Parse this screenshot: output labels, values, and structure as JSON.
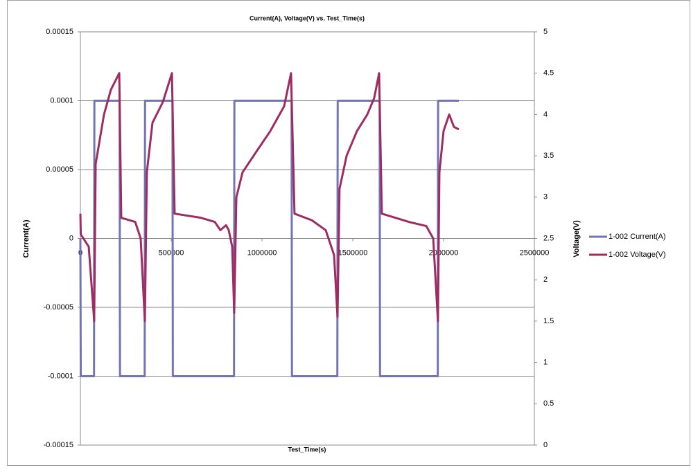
{
  "chart_data": {
    "type": "line",
    "title": "Current(A), Voltage(V) vs. Test_Time(s)",
    "x_label": "Test_Time(s)",
    "y_label": "Current(A)",
    "y2_label": "Voltage(V)",
    "xlim": [
      0,
      2500000
    ],
    "xticks": [
      0,
      500000,
      1000000,
      1500000,
      2000000,
      2500000
    ],
    "ylim": [
      -0.00015,
      0.00015
    ],
    "yticks": [
      -0.00015,
      -0.0001,
      -5e-05,
      0,
      5e-05,
      0.0001,
      0.00015
    ],
    "y2lim": [
      0,
      5
    ],
    "y2ticks": [
      0,
      0.5,
      1,
      1.5,
      2,
      2.5,
      3,
      3.5,
      4,
      4.5,
      5
    ],
    "grid": true,
    "legend": "right",
    "series": [
      {
        "name": "1-002 Current(A)",
        "color": "#7274b6",
        "x": [
          0,
          2000,
          75000,
          76000,
          77000,
          216000,
          217000,
          218000,
          354000,
          355000,
          356000,
          507000,
          508000,
          509000,
          846000,
          847000,
          848000,
          1163000,
          1164000,
          1165000,
          1415000,
          1416000,
          1417000,
          1648000,
          1649000,
          1650000,
          1968000,
          1969000,
          1970000,
          2084000
        ],
        "values": [
          0,
          -0.0001,
          -0.0001,
          0,
          0.0001,
          0.0001,
          0,
          -0.0001,
          -0.0001,
          0,
          0.0001,
          0.0001,
          0,
          -0.0001,
          -0.0001,
          0,
          0.0001,
          0.0001,
          0,
          -0.0001,
          -0.0001,
          0,
          0.0001,
          0.0001,
          0,
          -0.0001,
          -0.0001,
          0,
          0.0001,
          0.0001
        ]
      },
      {
        "name": "1-002 Voltage(V)",
        "color": "#9e2b62",
        "axis": "y2",
        "x": [
          0,
          2000,
          46000,
          76000,
          84000,
          130000,
          168000,
          214000,
          225000,
          302000,
          332000,
          355000,
          366000,
          397000,
          454000,
          504000,
          519000,
          664000,
          740000,
          771000,
          802000,
          817000,
          836000,
          847000,
          859000,
          893000,
          969000,
          1046000,
          1122000,
          1160000,
          1179000,
          1275000,
          1351000,
          1397000,
          1416000,
          1427000,
          1466000,
          1523000,
          1580000,
          1618000,
          1645000,
          1660000,
          1809000,
          1905000,
          1943000,
          1969000,
          1977000,
          2000000,
          2031000,
          2057000,
          2084000
        ],
        "values": [
          2.8,
          2.55,
          2.4,
          1.5,
          3.4,
          4.0,
          4.3,
          4.5,
          2.75,
          2.7,
          2.5,
          1.5,
          3.3,
          3.9,
          4.15,
          4.5,
          2.8,
          2.75,
          2.7,
          2.6,
          2.66,
          2.6,
          2.4,
          1.6,
          3.0,
          3.3,
          3.55,
          3.8,
          4.1,
          4.5,
          2.8,
          2.72,
          2.6,
          2.3,
          1.55,
          3.1,
          3.5,
          3.8,
          4.0,
          4.2,
          4.5,
          2.8,
          2.7,
          2.65,
          2.5,
          1.5,
          3.3,
          3.8,
          4.0,
          3.85,
          3.82
        ]
      }
    ]
  }
}
